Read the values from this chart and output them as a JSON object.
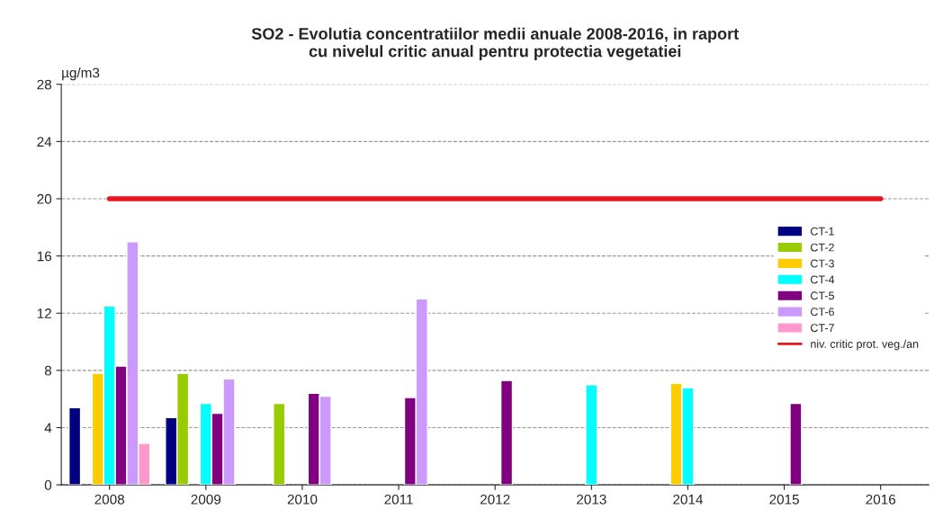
{
  "chart_data": {
    "type": "bar",
    "title": "SO2 - Evolutia concentratiilor medii anuale 2008-2016, in raport\ncu nivelul critic anual pentru protectia vegetatiei",
    "ylabel": "µg/m3",
    "categories": [
      "2008",
      "2009",
      "2010",
      "2011",
      "2012",
      "2013",
      "2014",
      "2015",
      "2016"
    ],
    "series": [
      {
        "name": "CT-1",
        "color": "#000080",
        "values": [
          5.4,
          4.7,
          null,
          null,
          null,
          null,
          null,
          null,
          null
        ]
      },
      {
        "name": "CT-2",
        "color": "#99cc00",
        "values": [
          null,
          7.8,
          5.7,
          null,
          null,
          null,
          null,
          null,
          null
        ]
      },
      {
        "name": "CT-3",
        "color": "#ffcc00",
        "values": [
          7.8,
          null,
          null,
          null,
          null,
          null,
          7.1,
          null,
          null
        ]
      },
      {
        "name": "CT-4",
        "color": "#00ffff",
        "values": [
          12.5,
          5.7,
          null,
          null,
          null,
          7.0,
          6.8,
          null,
          null
        ]
      },
      {
        "name": "CT-5",
        "color": "#800080",
        "values": [
          8.3,
          5.0,
          6.4,
          6.1,
          7.3,
          null,
          null,
          5.7,
          null
        ]
      },
      {
        "name": "CT-6",
        "color": "#cc99ff",
        "values": [
          17.0,
          7.4,
          6.2,
          13.0,
          null,
          null,
          null,
          null,
          null
        ]
      },
      {
        "name": "CT-7",
        "color": "#ff99cc",
        "values": [
          2.9,
          null,
          null,
          null,
          null,
          null,
          null,
          null,
          null
        ]
      },
      {
        "name": "niv. critic prot. veg./an",
        "type": "line",
        "color": "#e8141e",
        "values": [
          20,
          20,
          20,
          20,
          20,
          20,
          20,
          20,
          20
        ]
      }
    ],
    "ylim": [
      0,
      28
    ],
    "yticks": [
      0,
      4,
      8,
      12,
      16,
      20,
      24,
      28
    ],
    "grid": "y",
    "legend": "right"
  }
}
